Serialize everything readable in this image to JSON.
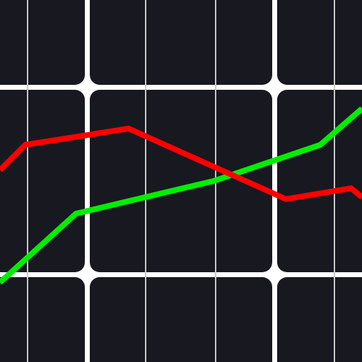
{
  "colors": {
    "background": "#ffffff",
    "tile": "#181820",
    "thin_line": "#c8c8c8",
    "red_line": "#ff0000",
    "green_line": "#00ee00"
  },
  "icon": "line-chart-icon",
  "lines": [
    {
      "id": "red",
      "points": [
        [
          0,
          0.47
        ],
        [
          0.07,
          0.4
        ],
        [
          0.355,
          0.355
        ],
        [
          0.79,
          0.55
        ],
        [
          0.97,
          0.52
        ],
        [
          1.0,
          0.545
        ]
      ]
    },
    {
      "id": "green",
      "points": [
        [
          0,
          0.78
        ],
        [
          0.21,
          0.59
        ],
        [
          0.59,
          0.5
        ],
        [
          0.885,
          0.4
        ],
        [
          1.0,
          0.3
        ]
      ]
    }
  ]
}
